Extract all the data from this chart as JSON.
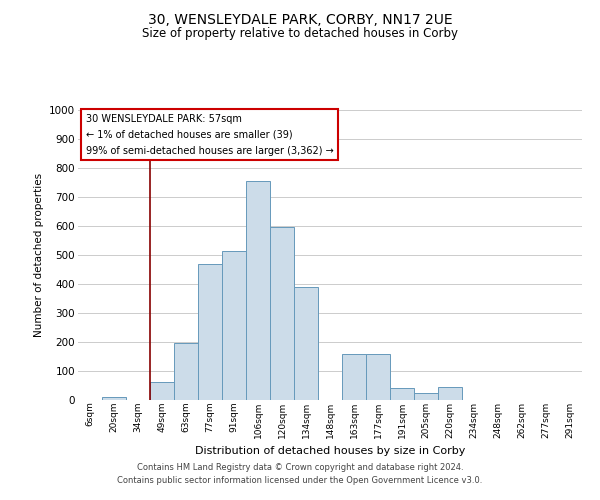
{
  "title": "30, WENSLEYDALE PARK, CORBY, NN17 2UE",
  "subtitle": "Size of property relative to detached houses in Corby",
  "xlabel": "Distribution of detached houses by size in Corby",
  "ylabel": "Number of detached properties",
  "bin_labels": [
    "6sqm",
    "20sqm",
    "34sqm",
    "49sqm",
    "63sqm",
    "77sqm",
    "91sqm",
    "106sqm",
    "120sqm",
    "134sqm",
    "148sqm",
    "163sqm",
    "177sqm",
    "191sqm",
    "205sqm",
    "220sqm",
    "234sqm",
    "248sqm",
    "262sqm",
    "277sqm",
    "291sqm"
  ],
  "bar_values": [
    0,
    10,
    0,
    62,
    195,
    470,
    515,
    755,
    595,
    390,
    0,
    160,
    160,
    42,
    25,
    45,
    0,
    0,
    0,
    0,
    0
  ],
  "bar_color": "#ccdce9",
  "bar_edge_color": "#6699bb",
  "grid_color": "#cccccc",
  "vline_color": "#880000",
  "vline_x": 2.5,
  "annotation_line1": "30 WENSLEYDALE PARK: 57sqm",
  "annotation_line2": "← 1% of detached houses are smaller (39)",
  "annotation_line3": "99% of semi-detached houses are larger (3,362) →",
  "annotation_box_color": "#ffffff",
  "annotation_box_edge": "#cc0000",
  "ylim": [
    0,
    1000
  ],
  "yticks": [
    0,
    100,
    200,
    300,
    400,
    500,
    600,
    700,
    800,
    900,
    1000
  ],
  "footnote_line1": "Contains HM Land Registry data © Crown copyright and database right 2024.",
  "footnote_line2": "Contains public sector information licensed under the Open Government Licence v3.0."
}
